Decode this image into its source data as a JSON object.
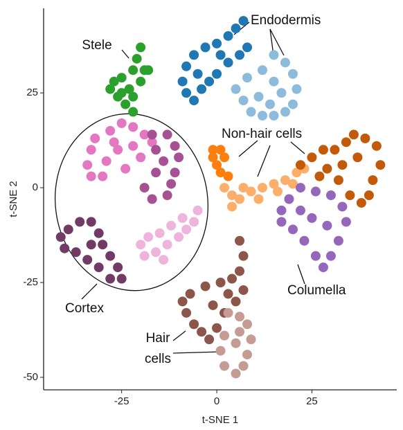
{
  "chart_data": {
    "type": "scatter",
    "xlabel": "t-SNE 1",
    "ylabel": "t-SNE 2",
    "xlim": [
      -45.5,
      47.3
    ],
    "ylim": [
      -53.3,
      47.3
    ],
    "xticks": [
      -25,
      0,
      25
    ],
    "yticks": [
      -50,
      -25,
      0,
      25
    ],
    "annotations": [
      "Endodermis",
      "Stele",
      "Non-hair cells",
      "Hair",
      "cells",
      "Columella",
      "Cortex"
    ],
    "series": [
      {
        "color": "#2ca02c",
        "x": [
          -20,
          -21,
          -22,
          -20,
          -23,
          -25,
          -27,
          -28,
          -26,
          -24,
          -22,
          -19,
          -22,
          -25,
          -18
        ],
        "y": [
          37,
          34,
          31,
          28,
          26,
          29,
          28,
          26,
          24,
          22,
          24,
          31,
          20,
          25,
          31
        ]
      },
      {
        "color": "#1f77b4",
        "x": [
          7,
          5,
          3,
          0,
          -3,
          -6,
          -8,
          -9,
          -8,
          -6,
          -4,
          0,
          3,
          6,
          8,
          1,
          -2,
          -5
        ],
        "y": [
          44,
          42,
          40,
          38,
          37,
          35,
          32,
          28,
          25,
          23,
          26,
          30,
          33,
          35,
          37,
          35,
          28,
          30
        ]
      },
      {
        "color": "#8dbbdc",
        "x": [
          15,
          18,
          20,
          21,
          20,
          18,
          15,
          12,
          9,
          7,
          5,
          8,
          12,
          15,
          17,
          11,
          14
        ],
        "y": [
          35,
          33,
          30,
          26,
          22,
          20,
          19,
          19,
          20,
          23,
          26,
          29,
          31,
          28,
          25,
          24,
          22
        ]
      },
      {
        "color": "#e377c2",
        "x": [
          -34,
          -33,
          -32,
          -28,
          -25,
          -22,
          -19,
          -17,
          -22,
          -26,
          -29,
          -30,
          -24,
          -20,
          -33,
          -27
        ],
        "y": [
          6,
          10,
          13,
          15,
          17,
          16,
          14,
          12,
          11,
          10,
          7,
          3,
          5,
          8,
          3,
          12
        ]
      },
      {
        "color": "#a55194",
        "x": [
          -17,
          -13,
          -11,
          -10,
          -11,
          -12,
          -13,
          -17,
          -19,
          -16,
          -14,
          -16
        ],
        "y": [
          14,
          14,
          11,
          8,
          4,
          1,
          -2,
          -3,
          0,
          4,
          7,
          10
        ]
      },
      {
        "color": "#723b66",
        "x": [
          -41,
          -39,
          -36,
          -33,
          -31,
          -30,
          -28,
          -26,
          -25,
          -28,
          -31,
          -34,
          -37,
          -40,
          -33
        ],
        "y": [
          -13,
          -11,
          -9,
          -9,
          -12,
          -15,
          -18,
          -21,
          -24,
          -24,
          -21,
          -19,
          -17,
          -16,
          -15
        ]
      },
      {
        "color": "#efb4dc",
        "x": [
          -5,
          -6,
          -8,
          -10,
          -13,
          -16,
          -19,
          -20,
          -18,
          -15,
          -12,
          -9,
          -14
        ],
        "y": [
          -6,
          -9,
          -11,
          -13,
          -15,
          -17,
          -18,
          -15,
          -13,
          -12,
          -10,
          -8,
          -19
        ]
      },
      {
        "color": "#ff7f0e",
        "x": [
          -1,
          1,
          2,
          0,
          1,
          3,
          -1
        ],
        "y": [
          10,
          10,
          8,
          6,
          4,
          3,
          8
        ]
      },
      {
        "color": "#fdae6b",
        "x": [
          2,
          4,
          6,
          9,
          12,
          15,
          18,
          21,
          23,
          20,
          16,
          11,
          7,
          4
        ],
        "y": [
          0,
          -2,
          -3,
          -1,
          0,
          1,
          2,
          4,
          5,
          1,
          -1,
          -3,
          0,
          -5
        ]
      },
      {
        "color": "#c35a0a",
        "x": [
          22,
          25,
          28,
          31,
          34,
          36,
          39,
          42,
          43,
          41,
          40,
          38,
          35,
          32,
          29,
          27,
          37,
          33
        ],
        "y": [
          6,
          8,
          10,
          10,
          12,
          14,
          13,
          11,
          6,
          2,
          -2,
          -4,
          -2,
          2,
          5,
          3,
          8,
          6
        ]
      },
      {
        "color": "#9467bd",
        "x": [
          17,
          19,
          22,
          26,
          30,
          33,
          34,
          32,
          30,
          28,
          26,
          23,
          20,
          17,
          25,
          29,
          22
        ],
        "y": [
          -6,
          -3,
          0,
          -1,
          -2,
          -5,
          -9,
          -14,
          -18,
          -21,
          -18,
          -14,
          -11,
          -9,
          -8,
          -10,
          -6
        ]
      },
      {
        "color": "#8c564b",
        "x": [
          6,
          7,
          6,
          4,
          1,
          -3,
          -7,
          -9,
          -8,
          -6,
          -4,
          -2,
          0,
          2,
          5,
          7,
          3,
          -1
        ],
        "y": [
          -14,
          -18,
          -22,
          -24,
          -25,
          -26,
          -28,
          -30,
          -33,
          -36,
          -38,
          -40,
          -37,
          -33,
          -30,
          -27,
          -28,
          -31
        ]
      },
      {
        "color": "#c49c94",
        "x": [
          3,
          6,
          8,
          9,
          8,
          7,
          5,
          2,
          1,
          2,
          5,
          6
        ],
        "y": [
          -33,
          -34,
          -36,
          -40,
          -44,
          -47,
          -49,
          -47,
          -43,
          -39,
          -41,
          -38
        ]
      }
    ]
  }
}
